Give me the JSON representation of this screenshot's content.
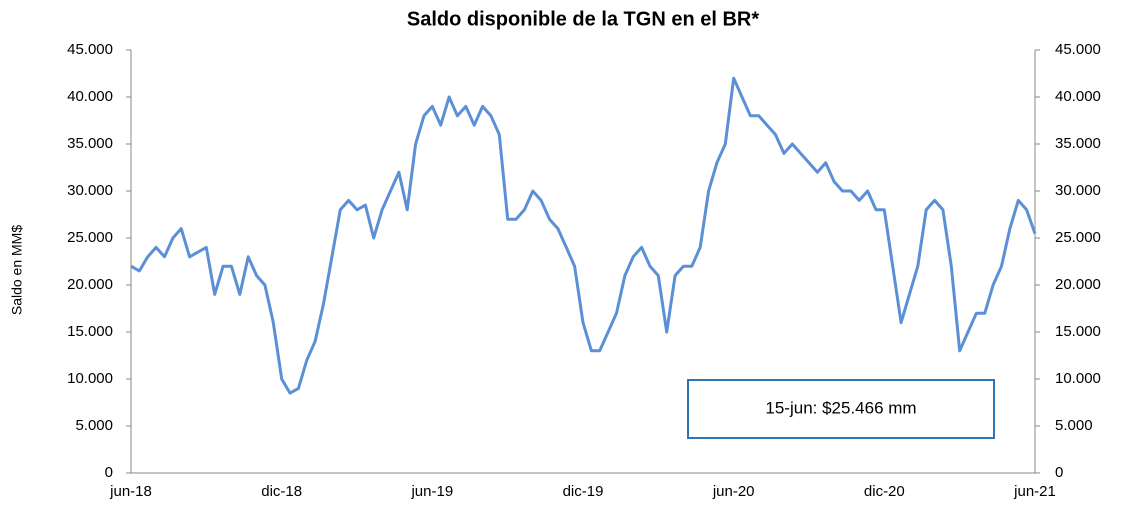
{
  "chart_data": {
    "type": "line",
    "title": "Saldo disponible de la TGN en el BR*",
    "ylabel": "Saldo en MM$",
    "categories": [
      "jun-18",
      null,
      null,
      null,
      null,
      null,
      null,
      null,
      null,
      null,
      null,
      null,
      null,
      null,
      null,
      null,
      null,
      null,
      "dic-18",
      null,
      null,
      null,
      null,
      null,
      null,
      null,
      null,
      null,
      null,
      null,
      null,
      null,
      null,
      null,
      null,
      null,
      "jun-19",
      null,
      null,
      null,
      null,
      null,
      null,
      null,
      null,
      null,
      null,
      null,
      null,
      null,
      null,
      null,
      null,
      null,
      "dic-19",
      null,
      null,
      null,
      null,
      null,
      null,
      null,
      null,
      null,
      null,
      null,
      null,
      null,
      null,
      null,
      null,
      null,
      "jun-20",
      null,
      null,
      null,
      null,
      null,
      null,
      null,
      null,
      null,
      null,
      null,
      null,
      null,
      null,
      null,
      null,
      null,
      "dic-20",
      null,
      null,
      null,
      null,
      null,
      null,
      null,
      null,
      null,
      null,
      null,
      null,
      null,
      null,
      null,
      null,
      null,
      "jun-21"
    ],
    "values": [
      22000,
      21500,
      23000,
      24000,
      23000,
      25000,
      26000,
      23000,
      23500,
      24000,
      19000,
      22000,
      22000,
      19000,
      23000,
      21000,
      20000,
      16000,
      10000,
      8500,
      9000,
      12000,
      14000,
      18000,
      23000,
      28000,
      29000,
      28000,
      28500,
      25000,
      28000,
      30000,
      32000,
      28000,
      35000,
      38000,
      39000,
      37000,
      40000,
      38000,
      39000,
      37000,
      39000,
      38000,
      36000,
      27000,
      27000,
      28000,
      30000,
      29000,
      27000,
      26000,
      24000,
      22000,
      16000,
      13000,
      13000,
      15000,
      17000,
      21000,
      23000,
      24000,
      22000,
      21000,
      15000,
      21000,
      22000,
      22000,
      24000,
      30000,
      33000,
      35000,
      42000,
      40000,
      38000,
      38000,
      37000,
      36000,
      34000,
      35000,
      34000,
      33000,
      32000,
      33000,
      31000,
      30000,
      30000,
      29000,
      30000,
      28000,
      28000,
      22000,
      16000,
      19000,
      22000,
      28000,
      29000,
      28000,
      22000,
      13000,
      15000,
      17000,
      17000,
      20000,
      22000,
      26000,
      29000,
      28000,
      25466
    ],
    "color": "#5b8fd6",
    "ylim": [
      0,
      45000
    ],
    "yticks": [
      0,
      {
        "value": 5000,
        "label": "5.000"
      },
      {
        "value": 10000,
        "label": "10.000"
      },
      {
        "value": 15000,
        "label": "15.000"
      },
      {
        "value": 20000,
        "label": "20.000"
      },
      {
        "value": 25000,
        "label": "25.000"
      },
      {
        "value": 30000,
        "label": "30.000"
      },
      {
        "value": 35000,
        "label": "35.000"
      },
      {
        "value": 40000,
        "label": "40.000"
      },
      {
        "value": 45000,
        "label": "45.000"
      }
    ],
    "y2lim": [
      0,
      45000
    ],
    "y2ticks": [
      0,
      {
        "value": 5000,
        "label": "5.000"
      },
      {
        "value": 10000,
        "label": "10.000"
      },
      {
        "value": 15000,
        "label": "15.000"
      },
      {
        "value": 20000,
        "label": "20.000"
      },
      {
        "value": 25000,
        "label": "25.000"
      },
      {
        "value": 30000,
        "label": "30.000"
      },
      {
        "value": 35000,
        "label": "35.000"
      },
      {
        "value": 40000,
        "label": "40.000"
      },
      {
        "value": 45000,
        "label": "45.000"
      }
    ],
    "annotation": "15-jun: $25.466 mm",
    "grid": false
  }
}
